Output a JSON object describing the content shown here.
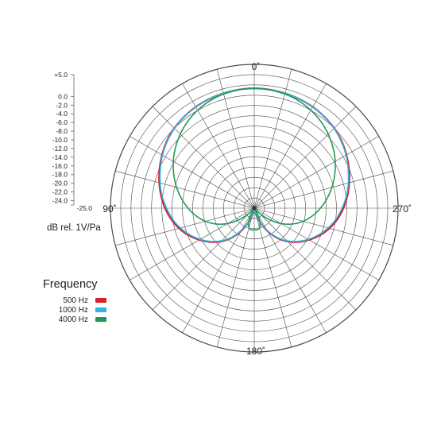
{
  "chart_data": {
    "type": "polar",
    "title": "",
    "radial_unit_label": "dB rel. 1V/Pa",
    "radial_scale": {
      "max_label": "+5.0",
      "labels": [
        "0.0",
        "-2.0",
        "-4.0",
        "-6.0",
        "-8.0",
        "-10.0",
        "-12.0",
        "-14.0",
        "-16.0",
        "-18.0",
        "-20.0",
        "-22.0",
        "-24.0"
      ],
      "min_label": "-25.0",
      "max": 5,
      "min": -25
    },
    "angle_labels": [
      {
        "angle": 0,
        "label": "0˚"
      },
      {
        "angle": 90,
        "label": "90˚"
      },
      {
        "angle": 180,
        "label": "180˚"
      },
      {
        "angle": 270,
        "label": "270˚"
      }
    ],
    "grid": true,
    "legend": {
      "title": "Frequency",
      "position": "bottom-left"
    },
    "angles_deg": [
      0,
      10,
      20,
      30,
      40,
      50,
      60,
      70,
      80,
      90,
      100,
      110,
      120,
      130,
      140,
      150,
      160,
      170,
      180
    ],
    "series": [
      {
        "name": "500 Hz",
        "color": "#d6202b",
        "values_db": [
          0.0,
          -0.1,
          -0.3,
          -0.6,
          -1.1,
          -1.8,
          -2.8,
          -3.9,
          -5.1,
          -6.4,
          -7.9,
          -9.7,
          -11.8,
          -14.0,
          -16.5,
          -19.5,
          -22.5,
          -24.5,
          -25.0
        ]
      },
      {
        "name": "1000 Hz",
        "color": "#2db4e8",
        "values_db": [
          0.0,
          -0.1,
          -0.3,
          -0.6,
          -1.1,
          -1.9,
          -2.9,
          -4.1,
          -5.3,
          -6.7,
          -8.2,
          -10.0,
          -12.0,
          -14.2,
          -16.7,
          -19.7,
          -22.7,
          -24.6,
          -25.0
        ]
      },
      {
        "name": "4000 Hz",
        "color": "#1f9a55",
        "values_db": [
          0.0,
          -0.2,
          -0.6,
          -1.4,
          -2.5,
          -3.9,
          -5.5,
          -7.3,
          -9.2,
          -11.2,
          -13.3,
          -15.7,
          -18.6,
          -22.0,
          -24.8,
          -24.0,
          -21.5,
          -20.5,
          -20.5
        ]
      }
    ]
  }
}
